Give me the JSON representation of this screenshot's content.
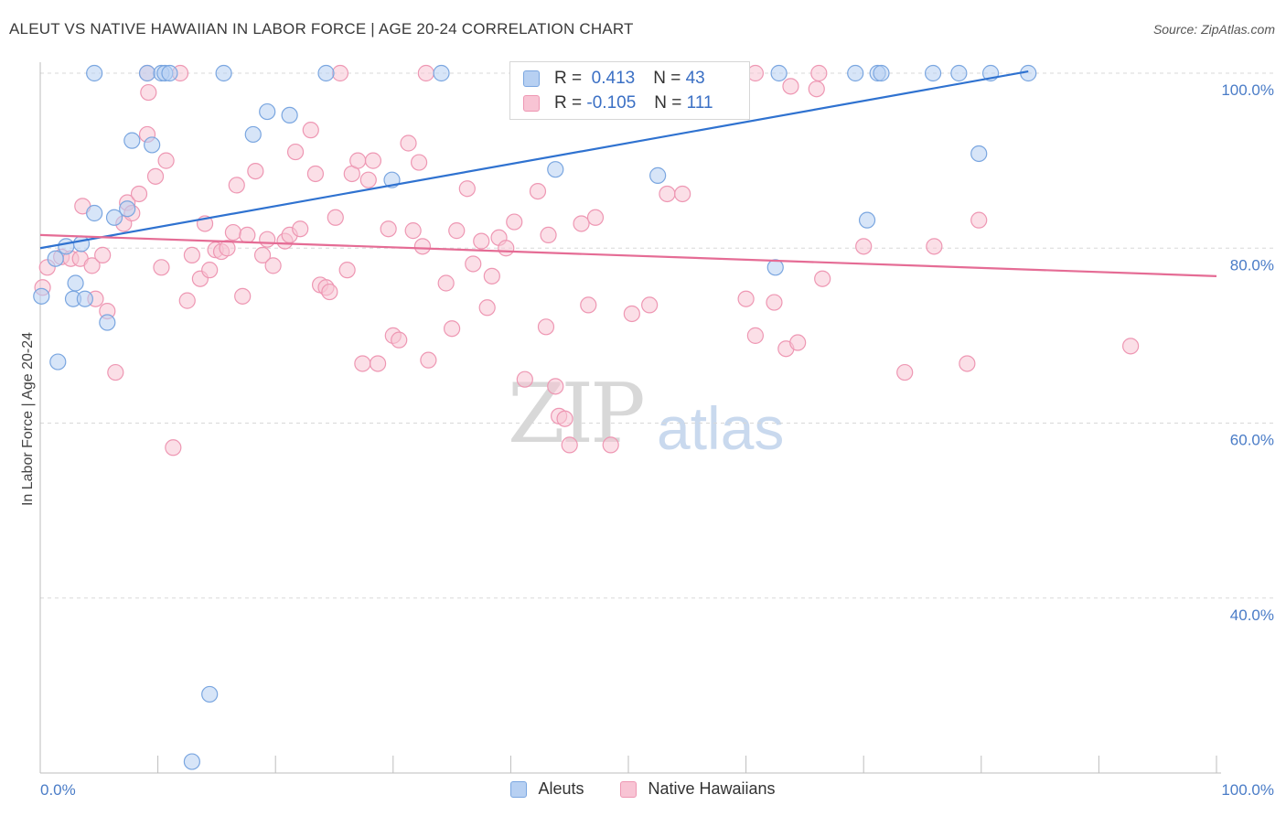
{
  "title": "ALEUT VS NATIVE HAWAIIAN IN LABOR FORCE | AGE 20-24 CORRELATION CHART",
  "source": "Source: ZipAtlas.com",
  "watermark": {
    "zip": "ZIP",
    "atlas": "atlas"
  },
  "colors": {
    "aleut_fill": "#b7d0f2",
    "aleut_stroke": "#7aa6e0",
    "aleut_line": "#2f72d0",
    "hawaiian_fill": "#f8c4d4",
    "hawaiian_stroke": "#ee97b3",
    "hawaiian_line": "#e56c95",
    "grid": "#d8d8d8",
    "tick_label": "#4a7cc7"
  },
  "legend": {
    "aleut": {
      "r_label": "R =",
      "r_value": "0.413",
      "n_label": "N =",
      "n_value": "43"
    },
    "hawaiian": {
      "r_label": "R =",
      "r_value": "-0.105",
      "n_label": "N =",
      "n_value": "111"
    }
  },
  "chart_data": {
    "type": "scatter",
    "title": "ALEUT VS NATIVE HAWAIIAN IN LABOR FORCE | AGE 20-24 CORRELATION CHART",
    "xlabel": "",
    "ylabel": "In Labor Force | Age 20-24",
    "xlim": [
      0,
      100
    ],
    "ylim": [
      20,
      100
    ],
    "x_tick_labels": [
      "0.0%",
      "100.0%"
    ],
    "y_ticks": [
      40,
      60,
      80,
      100
    ],
    "y_tick_labels": [
      "40.0%",
      "60.0%",
      "80.0%",
      "100.0%"
    ],
    "grid": true,
    "legend_position": "bottom-center",
    "series": [
      {
        "name": "Aleuts",
        "trend": {
          "x": [
            0,
            84
          ],
          "y": [
            80.0,
            100.2
          ]
        },
        "points": [
          [
            0.1,
            74.5
          ],
          [
            2.8,
            74.2
          ],
          [
            3.8,
            74.2
          ],
          [
            2.2,
            80.2
          ],
          [
            1.3,
            78.8
          ],
          [
            3.5,
            80.5
          ],
          [
            3.0,
            76.0
          ],
          [
            1.5,
            67.0
          ],
          [
            5.7,
            71.5
          ],
          [
            4.6,
            84.0
          ],
          [
            6.3,
            83.5
          ],
          [
            7.4,
            84.5
          ],
          [
            7.8,
            92.3
          ],
          [
            9.5,
            91.8
          ],
          [
            12.9,
            21.3
          ],
          [
            14.4,
            29.0
          ],
          [
            18.1,
            93.0
          ],
          [
            19.3,
            95.6
          ],
          [
            21.2,
            95.2
          ],
          [
            29.9,
            87.8
          ],
          [
            43.8,
            89.0
          ],
          [
            52.5,
            88.3
          ],
          [
            70.3,
            83.2
          ],
          [
            62.5,
            77.8
          ],
          [
            79.8,
            90.8
          ],
          [
            4.6,
            100
          ],
          [
            9.1,
            100
          ],
          [
            10.3,
            100
          ],
          [
            10.6,
            100
          ],
          [
            11.0,
            100
          ],
          [
            15.6,
            100
          ],
          [
            24.3,
            100
          ],
          [
            34.1,
            100
          ],
          [
            47.4,
            100
          ],
          [
            56.7,
            100
          ],
          [
            62.8,
            100
          ],
          [
            69.3,
            100
          ],
          [
            71.2,
            100
          ],
          [
            71.5,
            100
          ],
          [
            75.9,
            100
          ],
          [
            78.1,
            100
          ],
          [
            80.8,
            100
          ],
          [
            84.0,
            100
          ]
        ]
      },
      {
        "name": "Native Hawaiians",
        "trend": {
          "x": [
            0,
            100
          ],
          "y": [
            81.5,
            76.8
          ]
        },
        "points": [
          [
            0.2,
            75.5
          ],
          [
            0.6,
            77.8
          ],
          [
            1.8,
            79.0
          ],
          [
            2.6,
            78.8
          ],
          [
            3.4,
            78.8
          ],
          [
            3.6,
            84.8
          ],
          [
            4.4,
            78.0
          ],
          [
            4.7,
            74.2
          ],
          [
            5.3,
            79.2
          ],
          [
            5.7,
            72.8
          ],
          [
            6.4,
            65.8
          ],
          [
            7.1,
            82.8
          ],
          [
            7.4,
            85.2
          ],
          [
            7.8,
            84.0
          ],
          [
            8.4,
            86.2
          ],
          [
            9.1,
            93.0
          ],
          [
            9.2,
            97.8
          ],
          [
            9.8,
            88.2
          ],
          [
            10.3,
            77.8
          ],
          [
            10.7,
            90.0
          ],
          [
            11.3,
            57.2
          ],
          [
            12.5,
            74.0
          ],
          [
            12.9,
            79.2
          ],
          [
            13.6,
            76.5
          ],
          [
            14.0,
            82.8
          ],
          [
            14.4,
            77.5
          ],
          [
            14.9,
            79.8
          ],
          [
            15.4,
            79.6
          ],
          [
            15.9,
            80.0
          ],
          [
            16.4,
            81.8
          ],
          [
            16.7,
            87.2
          ],
          [
            17.2,
            74.5
          ],
          [
            17.6,
            81.5
          ],
          [
            18.3,
            88.8
          ],
          [
            18.9,
            79.2
          ],
          [
            19.3,
            81.0
          ],
          [
            19.8,
            78.0
          ],
          [
            20.8,
            80.8
          ],
          [
            21.2,
            81.5
          ],
          [
            21.7,
            91.0
          ],
          [
            22.1,
            82.2
          ],
          [
            23.0,
            93.5
          ],
          [
            23.4,
            88.5
          ],
          [
            23.8,
            75.8
          ],
          [
            24.3,
            75.5
          ],
          [
            24.6,
            75.0
          ],
          [
            25.1,
            83.5
          ],
          [
            26.1,
            77.5
          ],
          [
            26.5,
            88.5
          ],
          [
            27.0,
            90.0
          ],
          [
            27.4,
            66.8
          ],
          [
            27.9,
            87.8
          ],
          [
            28.3,
            90.0
          ],
          [
            28.7,
            66.8
          ],
          [
            29.6,
            82.2
          ],
          [
            30.0,
            70.0
          ],
          [
            30.5,
            69.5
          ],
          [
            31.3,
            92.0
          ],
          [
            31.7,
            82.0
          ],
          [
            32.2,
            89.8
          ],
          [
            32.5,
            80.2
          ],
          [
            33.0,
            67.2
          ],
          [
            34.5,
            76.0
          ],
          [
            35.0,
            70.8
          ],
          [
            35.4,
            82.0
          ],
          [
            36.3,
            86.8
          ],
          [
            36.8,
            78.2
          ],
          [
            37.5,
            80.8
          ],
          [
            38.0,
            73.2
          ],
          [
            38.4,
            76.8
          ],
          [
            39.0,
            81.2
          ],
          [
            39.6,
            80.0
          ],
          [
            40.3,
            83.0
          ],
          [
            41.2,
            65.0
          ],
          [
            42.3,
            86.5
          ],
          [
            43.0,
            71.0
          ],
          [
            43.2,
            81.5
          ],
          [
            43.8,
            64.2
          ],
          [
            44.1,
            60.8
          ],
          [
            44.6,
            60.5
          ],
          [
            45.0,
            57.5
          ],
          [
            46.0,
            82.8
          ],
          [
            46.6,
            73.5
          ],
          [
            47.2,
            83.5
          ],
          [
            48.5,
            57.5
          ],
          [
            50.3,
            72.5
          ],
          [
            51.8,
            73.5
          ],
          [
            53.3,
            86.2
          ],
          [
            54.6,
            86.2
          ],
          [
            60.0,
            74.2
          ],
          [
            60.8,
            70.0
          ],
          [
            62.4,
            73.8
          ],
          [
            63.4,
            68.5
          ],
          [
            64.4,
            69.2
          ],
          [
            66.5,
            76.5
          ],
          [
            70.0,
            80.2
          ],
          [
            73.5,
            65.8
          ],
          [
            76.0,
            80.2
          ],
          [
            78.8,
            66.8
          ],
          [
            79.8,
            83.2
          ],
          [
            92.7,
            68.8
          ],
          [
            9.1,
            100
          ],
          [
            11.9,
            100
          ],
          [
            25.5,
            100
          ],
          [
            32.8,
            100
          ],
          [
            48.2,
            100
          ],
          [
            54.8,
            100
          ],
          [
            60.8,
            100
          ],
          [
            66.2,
            100
          ],
          [
            63.8,
            98.5
          ],
          [
            66.0,
            98.2
          ]
        ]
      }
    ]
  },
  "bottom_legend": [
    "Aleuts",
    "Native Hawaiians"
  ]
}
